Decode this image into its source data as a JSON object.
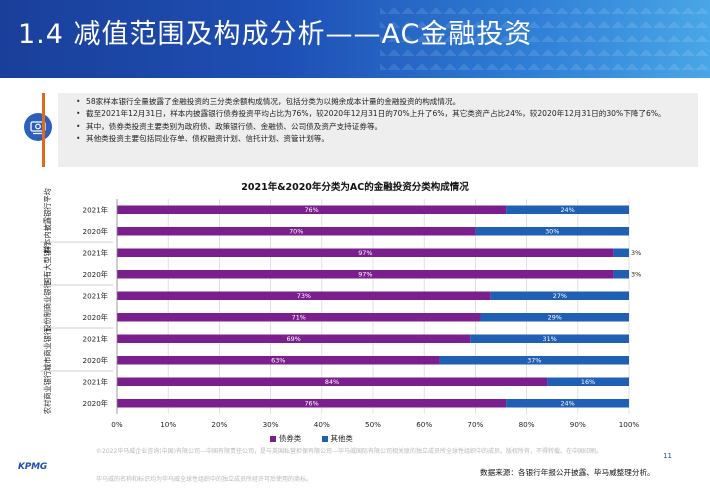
{
  "header": {
    "title": "1.4 减值范围及构成分析——AC金融投资"
  },
  "bullets": [
    "58家样本银行全量披露了金融投资的三分类余额构成情况，包括分类为以摊余成本计量的金融投资的构成情况。",
    "截至2021年12月31日，样本内披露银行债券投资平均占比为76%，较2020年12月31日的70%上升了6%，其它类资产占比24%，较2020年12月31日的30%下降了6%。",
    "其中，债券类投资主要类别为政府债、政策银行债、金融债、公司债及资产支持证券等。",
    "其他类投资主要包括同业存单、债权融资计划、信托计划、资管计划等。"
  ],
  "chart_data": {
    "type": "bar",
    "orientation": "horizontal",
    "stacked": true,
    "title": "2021年&2020年分类为AC的金融投资分类构成情况",
    "groups": [
      {
        "label": "样本内披露银行平均",
        "years": [
          "2021年",
          "2020年"
        ]
      },
      {
        "label": "国有大型银行",
        "years": [
          "2021年",
          "2020年"
        ]
      },
      {
        "label": "股份制商业银行",
        "years": [
          "2021年",
          "2020年"
        ]
      },
      {
        "label": "城市商业银行",
        "years": [
          "2021年",
          "2020年"
        ]
      },
      {
        "label": "农村商业银行",
        "years": [
          "2021年",
          "2020年"
        ]
      }
    ],
    "series": [
      {
        "name": "债券类",
        "color": "#7b1f8e",
        "values": [
          76,
          70,
          97,
          97,
          73,
          71,
          69,
          63,
          84,
          76
        ]
      },
      {
        "name": "其他类",
        "color": "#1f5fb4",
        "values": [
          24,
          30,
          3,
          3,
          27,
          29,
          31,
          37,
          16,
          24
        ]
      }
    ],
    "xlim": [
      0,
      100
    ],
    "xticks": [
      "0%",
      "10%",
      "20%",
      "30%",
      "40%",
      "50%",
      "60%",
      "70%",
      "80%",
      "90%",
      "100%"
    ],
    "legend_position": "bottom",
    "grid": true
  },
  "footer": {
    "copyright": "©2022毕马威企业咨询(中国)有限公司—中国有限责任公司，是与英国私营担保有限公司—毕马威国际有限公司相关联的独立成员所全球性组织中的成员。版权所有，不得转载。在中国印刷。",
    "trademark": "毕马威的名称和标识均为毕马威全球性组织中的独立成员所经许可后使用的商标。",
    "page": "11",
    "source": "数据来源：各银行年报公开披露、毕马威整理分析。",
    "logo": "KPMG"
  }
}
